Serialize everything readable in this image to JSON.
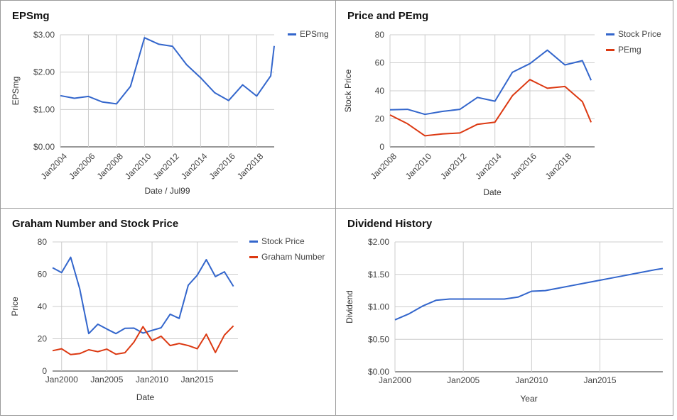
{
  "colors": {
    "blue": "#3366cc",
    "red": "#dc3912"
  },
  "chart_data": [
    {
      "type": "line",
      "title": "EPSmg",
      "xlabel": "Date / Jul99",
      "ylabel": "EPSmg",
      "ylim": [
        0,
        3
      ],
      "yticks": [
        "$0.00",
        "$1.00",
        "$2.00",
        "$3.00"
      ],
      "ytick_values": [
        0,
        1,
        2,
        3
      ],
      "xlim": [
        2004,
        2019.25
      ],
      "xticks": [
        "Jan2004",
        "Jan2006",
        "Jan2008",
        "Jan2010",
        "Jan2012",
        "Jan2014",
        "Jan2016",
        "Jan2018"
      ],
      "xtick_values": [
        2004,
        2006,
        2008,
        2010,
        2012,
        2014,
        2016,
        2018
      ],
      "legend": "right",
      "series": [
        {
          "name": "EPSmg",
          "color": "#3366cc",
          "x": [
            2004,
            2005,
            2006,
            2007,
            2008,
            2009,
            2010,
            2011,
            2012,
            2013,
            2014,
            2015,
            2016,
            2017,
            2018,
            2019,
            2019.25
          ],
          "y": [
            1.37,
            1.3,
            1.35,
            1.2,
            1.15,
            1.62,
            2.92,
            2.75,
            2.69,
            2.2,
            1.85,
            1.45,
            1.24,
            1.66,
            1.36,
            1.9,
            2.7
          ]
        }
      ]
    },
    {
      "type": "line",
      "title": "Price and PEmg",
      "xlabel": "Date",
      "ylabel": "Stock Price",
      "ylim": [
        0,
        80
      ],
      "yticks": [
        "0",
        "20",
        "40",
        "60",
        "80"
      ],
      "ytick_values": [
        0,
        20,
        40,
        60,
        80
      ],
      "xlim": [
        2008,
        2019.7
      ],
      "xticks": [
        "Jan2008",
        "Jan2010",
        "Jan2012",
        "Jan2014",
        "Jan2016",
        "Jan2018"
      ],
      "xtick_values": [
        2008,
        2010,
        2012,
        2014,
        2016,
        2018
      ],
      "legend": "right",
      "series": [
        {
          "name": "Stock Price",
          "color": "#3366cc",
          "x": [
            2008,
            2009,
            2010,
            2011,
            2012,
            2013,
            2014,
            2015,
            2016,
            2017,
            2018,
            2019,
            2019.5
          ],
          "y": [
            26.5,
            26.8,
            23.2,
            25.3,
            26.8,
            35.3,
            32.6,
            53.2,
            59.4,
            69.0,
            58.5,
            61.5,
            47.5
          ]
        },
        {
          "name": "PEmg",
          "color": "#dc3912",
          "x": [
            2008,
            2009,
            2010,
            2011,
            2012,
            2013,
            2014,
            2015,
            2016,
            2017,
            2018,
            2019,
            2019.5
          ],
          "y": [
            22.8,
            16.5,
            7.9,
            9.2,
            9.9,
            16.1,
            17.6,
            36.5,
            48.0,
            41.8,
            43.1,
            32.3,
            17.5
          ]
        }
      ]
    },
    {
      "type": "line",
      "title": "Graham Number and Stock Price",
      "xlabel": "Date",
      "ylabel": "Price",
      "ylim": [
        0,
        80
      ],
      "yticks": [
        "0",
        "20",
        "40",
        "60",
        "80"
      ],
      "ytick_values": [
        0,
        20,
        40,
        60,
        80
      ],
      "xlim": [
        1999,
        2019.5
      ],
      "xticks": [
        "Jan2000",
        "Jan2005",
        "Jan2010",
        "Jan2015"
      ],
      "xtick_values": [
        2000,
        2005,
        2010,
        2015
      ],
      "legend": "right",
      "series": [
        {
          "name": "Stock Price",
          "color": "#3366cc",
          "x": [
            1999,
            2000,
            2001,
            2002,
            2003,
            2004,
            2005,
            2006,
            2007,
            2008,
            2009,
            2010,
            2011,
            2012,
            2013,
            2014,
            2015,
            2016,
            2017,
            2018,
            2019
          ],
          "y": [
            64,
            61,
            70.5,
            51,
            23.2,
            29,
            26,
            23.2,
            26.5,
            26.6,
            23.5,
            25.2,
            26.8,
            35.2,
            32.6,
            53.2,
            59.4,
            69,
            58.5,
            61.5,
            52.5
          ]
        },
        {
          "name": "Graham Number",
          "color": "#dc3912",
          "x": [
            1999,
            2000,
            2001,
            2002,
            2003,
            2004,
            2005,
            2006,
            2007,
            2008,
            2009,
            2010,
            2011,
            2012,
            2013,
            2014,
            2015,
            2016,
            2017,
            2018,
            2019
          ],
          "y": [
            12.6,
            13.8,
            10.2,
            10.8,
            13.2,
            12.0,
            13.6,
            10.4,
            11.4,
            18.0,
            27.5,
            18.8,
            21.6,
            15.8,
            17.1,
            15.8,
            13.8,
            22.8,
            11.5,
            22.3,
            28.0
          ]
        }
      ]
    },
    {
      "type": "line",
      "title": "Dividend History",
      "xlabel": "Year",
      "ylabel": "Dividend",
      "ylim": [
        0,
        2
      ],
      "yticks": [
        "$0.00",
        "$0.50",
        "$1.00",
        "$1.50",
        "$2.00"
      ],
      "ytick_values": [
        0,
        0.5,
        1,
        1.5,
        2
      ],
      "xlim": [
        2000,
        2019.6
      ],
      "xticks": [
        "Jan2000",
        "Jan2005",
        "Jan2010",
        "Jan2015"
      ],
      "xtick_values": [
        2000,
        2005,
        2010,
        2015
      ],
      "legend": "none",
      "series": [
        {
          "name": "",
          "color": "#3366cc",
          "x": [
            2000,
            2001,
            2002,
            2003,
            2004,
            2005,
            2006,
            2007,
            2008,
            2009,
            2010,
            2011,
            2012,
            2013,
            2014,
            2015,
            2016,
            2017,
            2018,
            2019,
            2019.6
          ],
          "y": [
            0.8,
            0.89,
            1.01,
            1.1,
            1.12,
            1.12,
            1.12,
            1.12,
            1.12,
            1.15,
            1.24,
            1.25,
            1.29,
            1.33,
            1.37,
            1.41,
            1.45,
            1.49,
            1.53,
            1.57,
            1.59
          ]
        }
      ]
    }
  ]
}
